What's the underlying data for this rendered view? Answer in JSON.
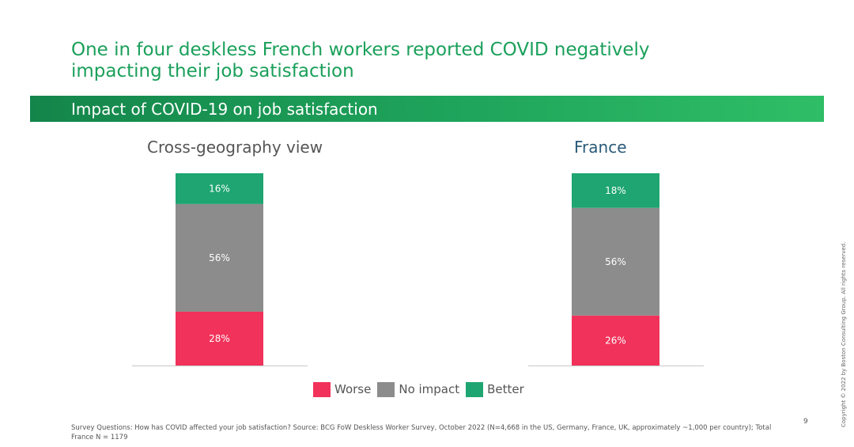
{
  "headline": "One in four deskless French workers reported COVID negatively impacting their job satisfaction",
  "subheader": "Impact of COVID-19 on job satisfaction",
  "colors": {
    "worse": "#f1325a",
    "no_impact": "#8c8c8c",
    "better": "#1ea571",
    "headline": "#1aa05a",
    "france_title": "#2a5a78"
  },
  "chart_data": [
    {
      "type": "bar",
      "stacked": true,
      "title": "Cross-geography view",
      "categories": [
        ""
      ],
      "series": [
        {
          "name": "Worse",
          "values": [
            28
          ],
          "label": "28%"
        },
        {
          "name": "No impact",
          "values": [
            56
          ],
          "label": "56%"
        },
        {
          "name": "Better",
          "values": [
            16
          ],
          "label": "16%"
        }
      ],
      "ylim": [
        0,
        100
      ]
    },
    {
      "type": "bar",
      "stacked": true,
      "title": "France",
      "categories": [
        ""
      ],
      "series": [
        {
          "name": "Worse",
          "values": [
            26
          ],
          "label": "26%"
        },
        {
          "name": "No impact",
          "values": [
            56
          ],
          "label": "56%"
        },
        {
          "name": "Better",
          "values": [
            18
          ],
          "label": "18%"
        }
      ],
      "ylim": [
        0,
        100
      ]
    }
  ],
  "legend": {
    "items": [
      {
        "label": "Worse",
        "color": "#f1325a"
      },
      {
        "label": "No impact",
        "color": "#8c8c8c"
      },
      {
        "label": "Better",
        "color": "#1ea571"
      }
    ]
  },
  "footnote": "Survey Questions: How has COVID affected your job satisfaction? Source: BCG FoW Deskless Worker Survey, October 2022 (N=4,668 in the US, Germany, France, UK, approximately ~1,000 per country); Total France N = 1179",
  "page_number": "9",
  "copyright": "Copyright © 2022 by Boston Consulting Group. All rights reserved."
}
